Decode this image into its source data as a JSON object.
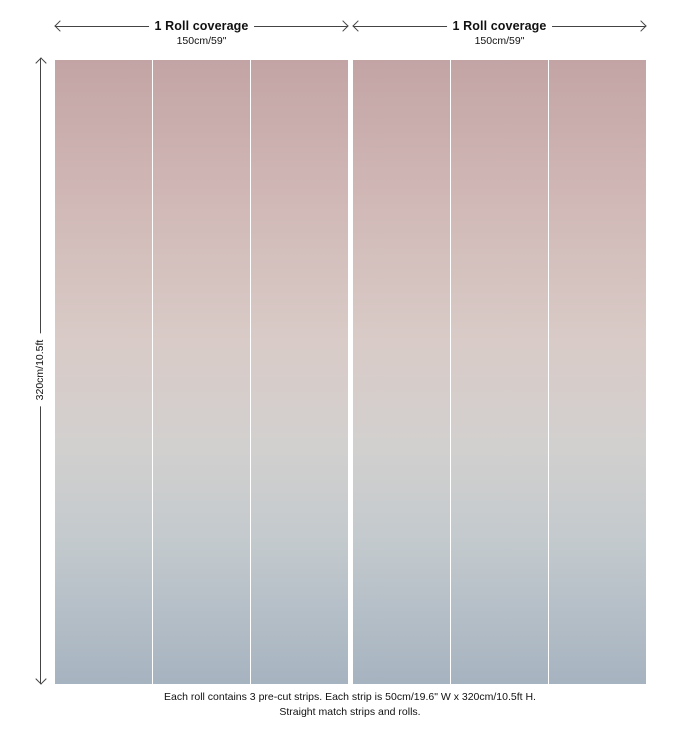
{
  "rolls": [
    {
      "title": "1 Roll coverage",
      "width_label": "150cm/59\"",
      "strips": 3
    },
    {
      "title": "1 Roll coverage",
      "width_label": "150cm/59\"",
      "strips": 3
    }
  ],
  "height_label": "320cm/10.5ft",
  "caption": {
    "line1": "Each roll contains 3 pre-cut strips.  Each strip is 50cm/19.6\" W x 320cm/10.5ft H.",
    "line2": "Straight match strips and rolls."
  },
  "colors": {
    "gradient_top": "#c3a4a5",
    "gradient_middle": "#d9cbc7",
    "gradient_bottom": "#a6b3c0"
  }
}
